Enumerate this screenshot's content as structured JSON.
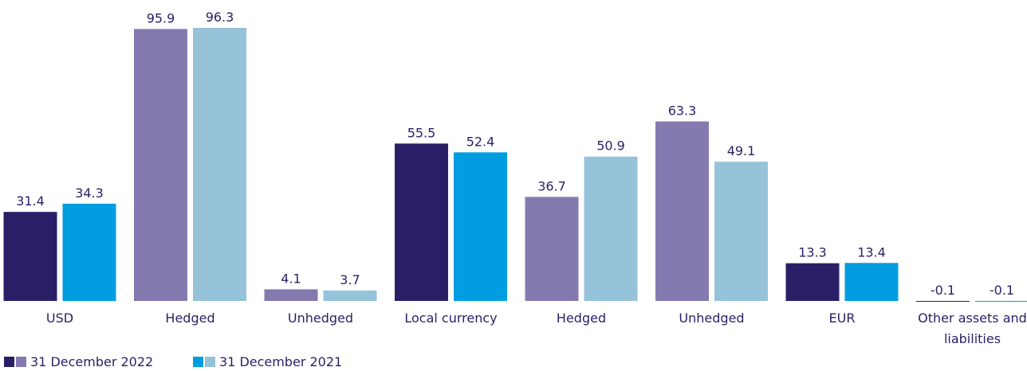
{
  "chart_data": {
    "type": "bar",
    "categories": [
      "USD",
      "Hedged",
      "Unhedged",
      "Local currency",
      "Hedged",
      "Unhedged",
      "EUR",
      "Other assets and liabilities"
    ],
    "series": [
      {
        "name": "31 December 2022",
        "color": "#2a1f66",
        "light_color": "#857ab0",
        "colors": [
          "#2a1f66",
          "#857ab0",
          "#857ab0",
          "#2a1f66",
          "#857ab0",
          "#857ab0",
          "#2a1f66",
          "#2a1f66"
        ],
        "values": [
          31.4,
          95.9,
          4.1,
          55.5,
          36.7,
          63.3,
          13.3,
          -0.1
        ]
      },
      {
        "name": "31 December 2021",
        "color": "#009ee0",
        "light_color": "#96c3da",
        "colors": [
          "#009ee0",
          "#96c3da",
          "#96c3da",
          "#009ee0",
          "#96c3da",
          "#96c3da",
          "#009ee0",
          "#009ee0"
        ],
        "values": [
          34.3,
          96.3,
          3.7,
          52.4,
          50.9,
          49.1,
          13.4,
          -0.1
        ]
      }
    ]
  }
}
